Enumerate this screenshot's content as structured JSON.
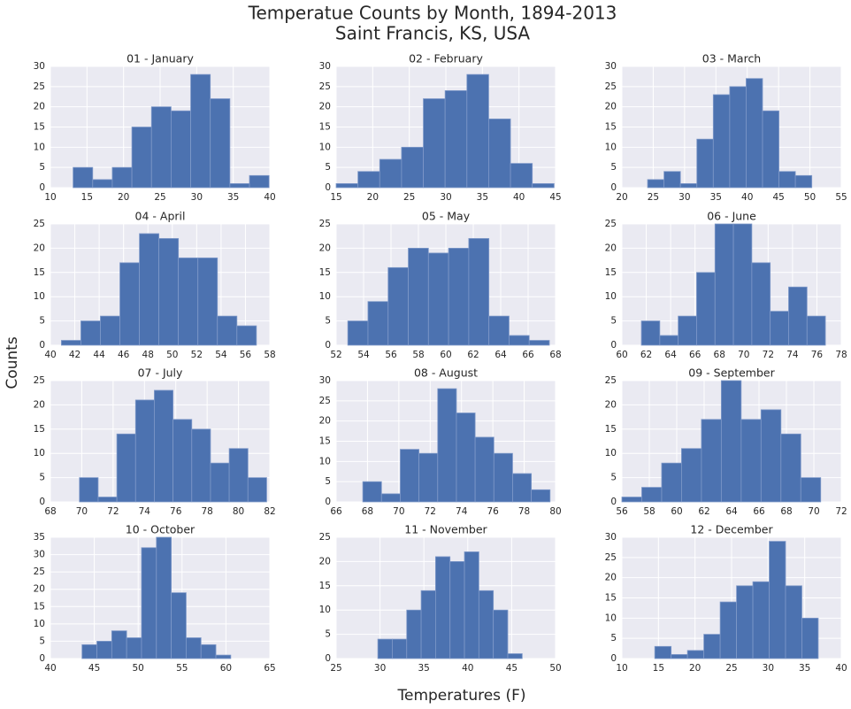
{
  "title": "Temperatue Counts by Month, 1894-2013",
  "subtitle": "Saint Francis, KS, USA",
  "y_label": "Counts",
  "x_label": "Temperatures (F)",
  "chart_data": [
    {
      "type": "histogram",
      "title": "01 - January",
      "color": "#4c72b0",
      "grid": true,
      "bins": [
        13.1,
        15.78,
        18.46,
        21.14,
        23.82,
        26.5,
        29.18,
        31.86,
        34.54,
        37.22,
        39.9
      ],
      "values": [
        5,
        2,
        5,
        15,
        20,
        19,
        28,
        22,
        1,
        3
      ],
      "xlim": [
        10,
        40
      ],
      "xticks": [
        10,
        15,
        20,
        25,
        30,
        35,
        40
      ],
      "ylim": [
        0,
        30
      ],
      "yticks": [
        0,
        5,
        10,
        15,
        20,
        25,
        30
      ]
    },
    {
      "type": "histogram",
      "title": "02 - February",
      "color": "#4c72b0",
      "grid": true,
      "bins": [
        15.0,
        17.98,
        20.96,
        23.94,
        26.92,
        29.9,
        32.88,
        35.86,
        38.84,
        41.82,
        44.8
      ],
      "values": [
        1,
        4,
        7,
        10,
        22,
        24,
        28,
        17,
        6,
        1
      ],
      "xlim": [
        15,
        45
      ],
      "xticks": [
        15,
        20,
        25,
        30,
        35,
        40,
        45
      ],
      "ylim": [
        0,
        30
      ],
      "yticks": [
        0,
        5,
        10,
        15,
        20,
        25,
        30
      ]
    },
    {
      "type": "histogram",
      "title": "03 - March",
      "color": "#4c72b0",
      "grid": true,
      "bins": [
        24.1,
        26.72,
        29.34,
        31.96,
        34.58,
        37.2,
        39.82,
        42.44,
        45.06,
        47.68,
        50.3
      ],
      "values": [
        2,
        4,
        1,
        12,
        23,
        25,
        27,
        19,
        4,
        3
      ],
      "xlim": [
        20,
        55
      ],
      "xticks": [
        20,
        25,
        30,
        35,
        40,
        45,
        50,
        55
      ],
      "ylim": [
        0,
        30
      ],
      "yticks": [
        0,
        5,
        10,
        15,
        20,
        25,
        30
      ]
    },
    {
      "type": "histogram",
      "title": "04 - April",
      "color": "#4c72b0",
      "grid": true,
      "bins": [
        40.9,
        42.5,
        44.1,
        45.7,
        47.3,
        48.9,
        50.5,
        52.1,
        53.7,
        55.3,
        56.9
      ],
      "values": [
        1,
        5,
        6,
        17,
        23,
        22,
        18,
        18,
        6,
        4
      ],
      "xlim": [
        40,
        58
      ],
      "xticks": [
        40,
        42,
        44,
        46,
        48,
        50,
        52,
        54,
        56,
        58
      ],
      "ylim": [
        0,
        25
      ],
      "yticks": [
        0,
        5,
        10,
        15,
        20,
        25
      ]
    },
    {
      "type": "histogram",
      "title": "05 - May",
      "color": "#4c72b0",
      "grid": true,
      "bins": [
        52.85,
        54.32,
        55.79,
        57.26,
        58.73,
        60.2,
        61.67,
        63.14,
        64.61,
        66.08,
        67.55
      ],
      "values": [
        5,
        9,
        16,
        20,
        19,
        20,
        22,
        6,
        2,
        1
      ],
      "xlim": [
        52,
        68
      ],
      "xticks": [
        52,
        54,
        56,
        58,
        60,
        62,
        64,
        66,
        68
      ],
      "ylim": [
        0,
        25
      ],
      "yticks": [
        0,
        5,
        10,
        15,
        20,
        25
      ]
    },
    {
      "type": "histogram",
      "title": "06 - June",
      "color": "#4c72b0",
      "grid": true,
      "bins": [
        61.6,
        63.11,
        64.62,
        66.13,
        67.64,
        69.15,
        70.66,
        72.17,
        73.68,
        75.19,
        76.7
      ],
      "values": [
        5,
        2,
        6,
        15,
        25,
        25,
        17,
        7,
        12,
        6
      ],
      "xlim": [
        60,
        78
      ],
      "xticks": [
        60,
        62,
        64,
        66,
        68,
        70,
        72,
        74,
        76,
        78
      ],
      "ylim": [
        0,
        25
      ],
      "yticks": [
        0,
        5,
        10,
        15,
        20,
        25
      ]
    },
    {
      "type": "histogram",
      "title": "07 - July",
      "color": "#4c72b0",
      "grid": true,
      "bins": [
        69.85,
        71.045,
        72.24,
        73.435,
        74.63,
        75.825,
        77.02,
        78.215,
        79.41,
        80.605,
        81.8
      ],
      "values": [
        5,
        1,
        14,
        21,
        23,
        17,
        15,
        8,
        11,
        5
      ],
      "xlim": [
        68,
        82
      ],
      "xticks": [
        68,
        70,
        72,
        74,
        76,
        78,
        80,
        82
      ],
      "ylim": [
        0,
        25
      ],
      "yticks": [
        0,
        5,
        10,
        15,
        20,
        25
      ]
    },
    {
      "type": "histogram",
      "title": "08 - August",
      "color": "#4c72b0",
      "grid": true,
      "bins": [
        67.7,
        68.895,
        70.09,
        71.285,
        72.48,
        73.675,
        74.87,
        76.065,
        77.26,
        78.455,
        79.65
      ],
      "values": [
        5,
        2,
        13,
        12,
        28,
        22,
        16,
        12,
        7,
        3
      ],
      "xlim": [
        66,
        80
      ],
      "xticks": [
        66,
        68,
        70,
        72,
        74,
        76,
        78,
        80
      ],
      "ylim": [
        0,
        30
      ],
      "yticks": [
        0,
        5,
        10,
        15,
        20,
        25,
        30
      ]
    },
    {
      "type": "histogram",
      "title": "09 - September",
      "color": "#4c72b0",
      "grid": true,
      "bins": [
        56.0,
        57.45,
        58.9,
        60.35,
        61.8,
        63.25,
        64.7,
        66.15,
        67.6,
        69.05,
        70.5
      ],
      "values": [
        1,
        3,
        8,
        11,
        17,
        25,
        17,
        19,
        14,
        5
      ],
      "xlim": [
        56,
        72
      ],
      "xticks": [
        56,
        58,
        60,
        62,
        64,
        66,
        68,
        70,
        72
      ],
      "ylim": [
        0,
        25
      ],
      "yticks": [
        0,
        5,
        10,
        15,
        20,
        25
      ]
    },
    {
      "type": "histogram",
      "title": "10 - October",
      "color": "#4c72b0",
      "grid": true,
      "bins": [
        43.6,
        45.295,
        46.99,
        48.685,
        50.38,
        52.075,
        53.77,
        55.465,
        57.16,
        58.855,
        60.55
      ],
      "values": [
        4,
        5,
        8,
        6,
        32,
        35,
        19,
        6,
        4,
        1
      ],
      "xlim": [
        40,
        65
      ],
      "xticks": [
        40,
        45,
        50,
        55,
        60,
        65
      ],
      "ylim": [
        0,
        35
      ],
      "yticks": [
        0,
        5,
        10,
        15,
        20,
        25,
        30,
        35
      ]
    },
    {
      "type": "histogram",
      "title": "11 - November",
      "color": "#4c72b0",
      "grid": true,
      "bins": [
        29.75,
        31.395,
        33.04,
        34.685,
        36.33,
        37.975,
        39.62,
        41.265,
        42.91,
        44.555,
        46.2
      ],
      "values": [
        4,
        4,
        10,
        14,
        21,
        20,
        22,
        14,
        10,
        1
      ],
      "xlim": [
        25,
        50
      ],
      "xticks": [
        25,
        30,
        35,
        40,
        45,
        50
      ],
      "ylim": [
        0,
        25
      ],
      "yticks": [
        0,
        5,
        10,
        15,
        20,
        25
      ]
    },
    {
      "type": "histogram",
      "title": "12 - December",
      "color": "#4c72b0",
      "grid": true,
      "bins": [
        14.5,
        16.735,
        18.97,
        21.205,
        23.44,
        25.675,
        27.91,
        30.145,
        32.38,
        34.615,
        36.85
      ],
      "values": [
        3,
        1,
        2,
        6,
        14,
        18,
        19,
        29,
        18,
        10
      ],
      "xlim": [
        10,
        40
      ],
      "xticks": [
        10,
        15,
        20,
        25,
        30,
        35,
        40
      ],
      "ylim": [
        0,
        30
      ],
      "yticks": [
        0,
        5,
        10,
        15,
        20,
        25,
        30
      ]
    }
  ]
}
